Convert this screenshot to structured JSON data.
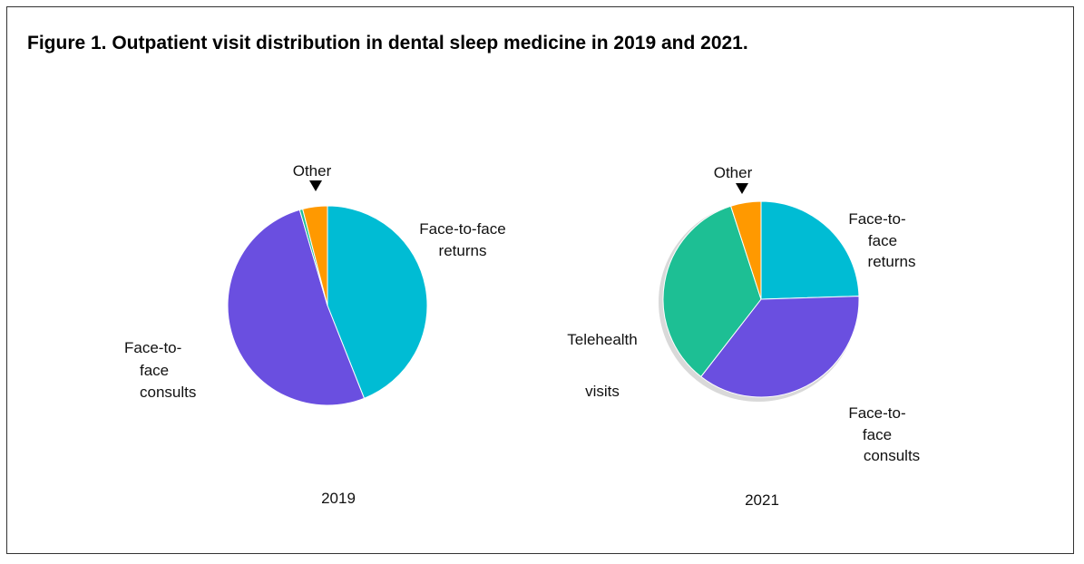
{
  "figure": {
    "title": "Figure 1. Outpatient visit distribution in dental sleep medicine in 2019 and 2021."
  },
  "colors": {
    "face_to_face_returns": "#00BCD4",
    "face_to_face_consults": "#6A4FE0",
    "telehealth_visits": "#1DBF94",
    "other": "#FF9900"
  },
  "chart_data": [
    {
      "type": "pie",
      "year_label": "2019",
      "slices": [
        {
          "key": "face_to_face_returns",
          "label_lines": [
            "Face-to-face",
            "returns"
          ],
          "value": 44.0
        },
        {
          "key": "face_to_face_consults",
          "label_lines": [
            "Face-to-",
            "face",
            "consults"
          ],
          "value": 51.5
        },
        {
          "key": "telehealth_visits",
          "label_lines": [],
          "value": 0.5
        },
        {
          "key": "other",
          "label_lines": [
            "Other"
          ],
          "value": 4.0
        }
      ]
    },
    {
      "type": "pie",
      "year_label": "2021",
      "slices": [
        {
          "key": "face_to_face_returns",
          "label_lines": [
            "Face-to-",
            "face",
            "returns"
          ],
          "value": 24.5
        },
        {
          "key": "face_to_face_consults",
          "label_lines": [
            "Face-to-",
            "face",
            "consults"
          ],
          "value": 36.0
        },
        {
          "key": "telehealth_visits",
          "label_lines": [
            "Telehealth",
            "visits"
          ],
          "value": 34.5
        },
        {
          "key": "other",
          "label_lines": [
            "Other"
          ],
          "value": 5.0
        }
      ]
    }
  ]
}
